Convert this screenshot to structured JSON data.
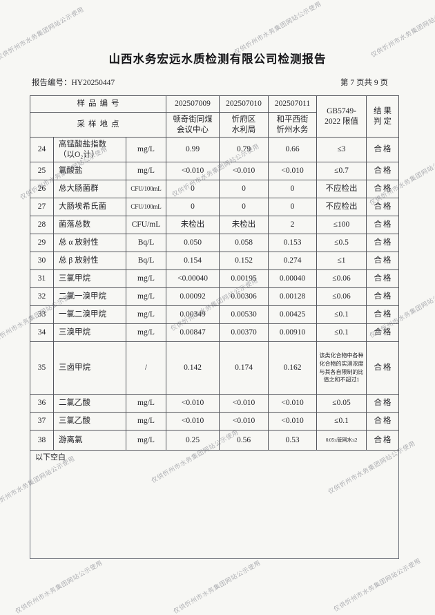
{
  "watermark": {
    "text": "仅供忻州市水务集团网站公示使用"
  },
  "header": {
    "title": "山西水务宏远水质检测有限公司检测报告",
    "report_no": "报告编号：HY20250447",
    "page_label": "第 7 页共 9 页"
  },
  "table": {
    "head": {
      "sample_no_label": "样品编号",
      "sample_site_label": "采样地点",
      "sample_nos": [
        "202507009",
        "202507010",
        "202507011"
      ],
      "sample_sites": [
        "顿奇街同煤\n会议中心",
        "忻府区\n水利局",
        "和平西街\n忻州水务"
      ],
      "limit_label": "GB5749-\n2022 限值",
      "result_label": "结 果\n判 定"
    },
    "rows": [
      {
        "no": "24",
        "param": "高锰酸盐指数\n（以O₂计）",
        "unit": "mg/L",
        "v1": "0.99",
        "v2": "0.79",
        "v3": "0.66",
        "limit": "≤3",
        "result": "合格"
      },
      {
        "no": "25",
        "param": "氯酸盐",
        "unit": "mg/L",
        "v1": "<0.010",
        "v2": "<0.010",
        "v3": "<0.010",
        "limit": "≤0.7",
        "result": "合格"
      },
      {
        "no": "26",
        "param": "总大肠菌群",
        "unit": "CFU/100mL",
        "v1": "0",
        "v2": "0",
        "v3": "0",
        "limit": "不应检出",
        "result": "合格"
      },
      {
        "no": "27",
        "param": "大肠埃希氏菌",
        "unit": "CFU/100mL",
        "v1": "0",
        "v2": "0",
        "v3": "0",
        "limit": "不应检出",
        "result": "合格"
      },
      {
        "no": "28",
        "param": "菌落总数",
        "unit": "CFU/mL",
        "v1": "未检出",
        "v2": "未检出",
        "v3": "2",
        "limit": "≤100",
        "result": "合格"
      },
      {
        "no": "29",
        "param": "总 α 放射性",
        "unit": "Bq/L",
        "v1": "0.050",
        "v2": "0.058",
        "v3": "0.153",
        "limit": "≤0.5",
        "result": "合格"
      },
      {
        "no": "30",
        "param": "总 β 放射性",
        "unit": "Bq/L",
        "v1": "0.154",
        "v2": "0.152",
        "v3": "0.274",
        "limit": "≤1",
        "result": "合格"
      },
      {
        "no": "31",
        "param": "三氯甲烷",
        "unit": "mg/L",
        "v1": "<0.00040",
        "v2": "0.00195",
        "v3": "0.00040",
        "limit": "≤0.06",
        "result": "合格"
      },
      {
        "no": "32",
        "param": "二氯一溴甲烷",
        "unit": "mg/L",
        "v1": "0.00092",
        "v2": "0.00306",
        "v3": "0.00128",
        "limit": "≤0.06",
        "result": "合格"
      },
      {
        "no": "33",
        "param": "一氯二溴甲烷",
        "unit": "mg/L",
        "v1": "0.00349",
        "v2": "0.00530",
        "v3": "0.00425",
        "limit": "≤0.1",
        "result": "合格"
      },
      {
        "no": "34",
        "param": "三溴甲烷",
        "unit": "mg/L",
        "v1": "0.00847",
        "v2": "0.00370",
        "v3": "0.00910",
        "limit": "≤0.1",
        "result": "合格"
      },
      {
        "no": "35",
        "param": "三卤甲烷",
        "unit": "/",
        "v1": "0.142",
        "v2": "0.174",
        "v3": "0.162",
        "limit": "该类化合物中各种化合物的实测浓度与其各自限制的比值之和不超过1",
        "result": "合格"
      },
      {
        "no": "36",
        "param": "二氯乙酸",
        "unit": "mg/L",
        "v1": "<0.010",
        "v2": "<0.010",
        "v3": "<0.010",
        "limit": "≤0.05",
        "result": "合格"
      },
      {
        "no": "37",
        "param": "三氯乙酸",
        "unit": "mg/L",
        "v1": "<0.010",
        "v2": "<0.010",
        "v3": "<0.010",
        "limit": "≤0.1",
        "result": "合格"
      },
      {
        "no": "38",
        "param": "游离氯",
        "unit": "mg/L",
        "v1": "0.25",
        "v2": "0.56",
        "v3": "0.53",
        "limit": "0.05≤管网水≤2",
        "result": "合格"
      }
    ]
  },
  "footer_note": "以下空白"
}
